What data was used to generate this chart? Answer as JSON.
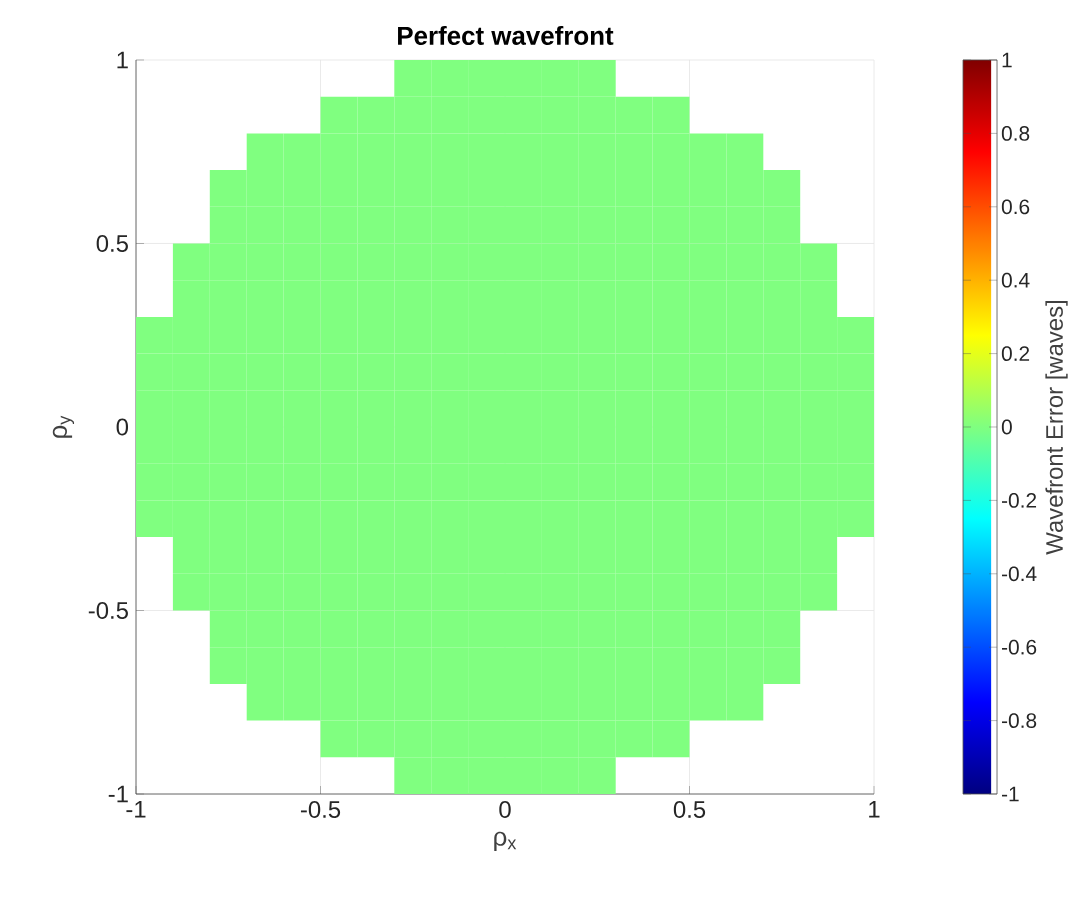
{
  "chart_data": {
    "type": "heatmap",
    "title": "Perfect wavefront",
    "xlabel": "ρ$_{x}$",
    "ylabel": "ρ$_{y}$",
    "clabel": "Wavefront Error [waves]",
    "xlim": [
      -1,
      1
    ],
    "ylim": [
      -1,
      1
    ],
    "xticks": [
      -1,
      -0.5,
      0,
      0.5,
      1
    ],
    "yticks": [
      -1,
      -0.5,
      0,
      0.5,
      1
    ],
    "clim": [
      -1,
      1
    ],
    "cticks": [
      -1,
      -0.8,
      -0.6,
      -0.4,
      -0.2,
      0,
      0.2,
      0.4,
      0.6,
      0.8,
      1
    ],
    "grid": true,
    "cells": [
      [
        null,
        null,
        null,
        null,
        null,
        null,
        null,
        0,
        0,
        0,
        0,
        0,
        0,
        null,
        null,
        null,
        null,
        null,
        null,
        null
      ],
      [
        null,
        null,
        null,
        null,
        null,
        0,
        0,
        0,
        0,
        0,
        0,
        0,
        0,
        0,
        0,
        null,
        null,
        null,
        null,
        null
      ],
      [
        null,
        null,
        null,
        0,
        0,
        0,
        0,
        0,
        0,
        0,
        0,
        0,
        0,
        0,
        0,
        0,
        0,
        null,
        null,
        null
      ],
      [
        null,
        null,
        0,
        0,
        0,
        0,
        0,
        0,
        0,
        0,
        0,
        0,
        0,
        0,
        0,
        0,
        0,
        0,
        null,
        null
      ],
      [
        null,
        null,
        0,
        0,
        0,
        0,
        0,
        0,
        0,
        0,
        0,
        0,
        0,
        0,
        0,
        0,
        0,
        0,
        null,
        null
      ],
      [
        null,
        0,
        0,
        0,
        0,
        0,
        0,
        0,
        0,
        0,
        0,
        0,
        0,
        0,
        0,
        0,
        0,
        0,
        0,
        null
      ],
      [
        null,
        0,
        0,
        0,
        0,
        0,
        0,
        0,
        0,
        0,
        0,
        0,
        0,
        0,
        0,
        0,
        0,
        0,
        0,
        null
      ],
      [
        0,
        0,
        0,
        0,
        0,
        0,
        0,
        0,
        0,
        0,
        0,
        0,
        0,
        0,
        0,
        0,
        0,
        0,
        0,
        0
      ],
      [
        0,
        0,
        0,
        0,
        0,
        0,
        0,
        0,
        0,
        0,
        0,
        0,
        0,
        0,
        0,
        0,
        0,
        0,
        0,
        0
      ],
      [
        0,
        0,
        0,
        0,
        0,
        0,
        0,
        0,
        0,
        0,
        0,
        0,
        0,
        0,
        0,
        0,
        0,
        0,
        0,
        0
      ],
      [
        0,
        0,
        0,
        0,
        0,
        0,
        0,
        0,
        0,
        0,
        0,
        0,
        0,
        0,
        0,
        0,
        0,
        0,
        0,
        0
      ],
      [
        0,
        0,
        0,
        0,
        0,
        0,
        0,
        0,
        0,
        0,
        0,
        0,
        0,
        0,
        0,
        0,
        0,
        0,
        0,
        0
      ],
      [
        0,
        0,
        0,
        0,
        0,
        0,
        0,
        0,
        0,
        0,
        0,
        0,
        0,
        0,
        0,
        0,
        0,
        0,
        0,
        0
      ],
      [
        null,
        0,
        0,
        0,
        0,
        0,
        0,
        0,
        0,
        0,
        0,
        0,
        0,
        0,
        0,
        0,
        0,
        0,
        0,
        null
      ],
      [
        null,
        0,
        0,
        0,
        0,
        0,
        0,
        0,
        0,
        0,
        0,
        0,
        0,
        0,
        0,
        0,
        0,
        0,
        0,
        null
      ],
      [
        null,
        null,
        0,
        0,
        0,
        0,
        0,
        0,
        0,
        0,
        0,
        0,
        0,
        0,
        0,
        0,
        0,
        0,
        null,
        null
      ],
      [
        null,
        null,
        0,
        0,
        0,
        0,
        0,
        0,
        0,
        0,
        0,
        0,
        0,
        0,
        0,
        0,
        0,
        0,
        null,
        null
      ],
      [
        null,
        null,
        null,
        0,
        0,
        0,
        0,
        0,
        0,
        0,
        0,
        0,
        0,
        0,
        0,
        0,
        0,
        null,
        null,
        null
      ],
      [
        null,
        null,
        null,
        null,
        null,
        0,
        0,
        0,
        0,
        0,
        0,
        0,
        0,
        0,
        0,
        null,
        null,
        null,
        null,
        null
      ],
      [
        null,
        null,
        null,
        null,
        null,
        null,
        null,
        0,
        0,
        0,
        0,
        0,
        0,
        null,
        null,
        null,
        null,
        null,
        null,
        null
      ]
    ]
  }
}
